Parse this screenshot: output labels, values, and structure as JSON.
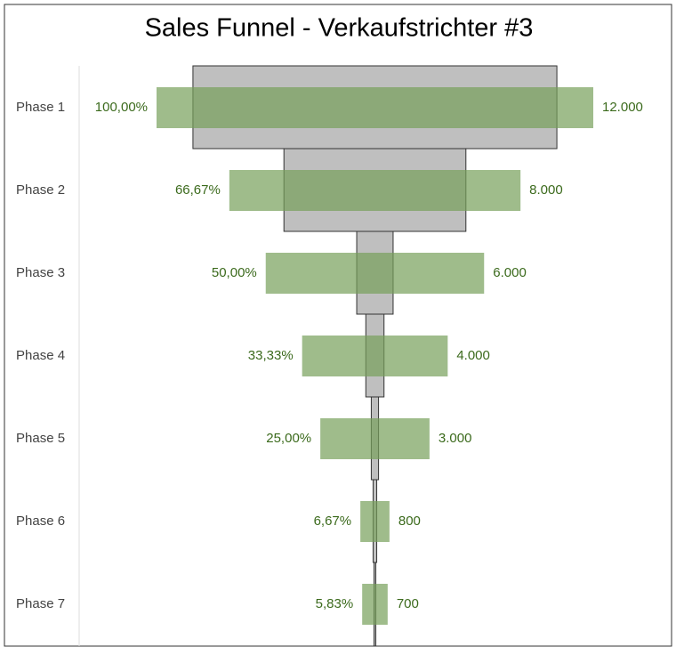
{
  "chart_data": {
    "type": "funnel",
    "title": "Sales Funnel - Verkaufstrichter #3",
    "categories": [
      "Phase 1",
      "Phase 2",
      "Phase 3",
      "Phase 4",
      "Phase 5",
      "Phase 6",
      "Phase 7"
    ],
    "series": [
      {
        "color": "#bfbfbf",
        "values": [
          10000,
          5000,
          1000,
          500,
          200,
          100,
          50
        ]
      },
      {
        "color": "#76a05a",
        "values": [
          12000,
          8000,
          6000,
          4000,
          3000,
          800,
          700
        ],
        "value_labels": [
          "12.000",
          "8.000",
          "6.000",
          "4.000",
          "3.000",
          "800",
          "700"
        ]
      }
    ],
    "percentages": [
      100,
      66.67,
      50,
      33.33,
      25,
      6.67,
      5.83
    ],
    "percentage_labels": [
      "100,00%",
      "66,67%",
      "50,00%",
      "33,33%",
      "25,00%",
      "6,67%",
      "5,83%"
    ]
  }
}
